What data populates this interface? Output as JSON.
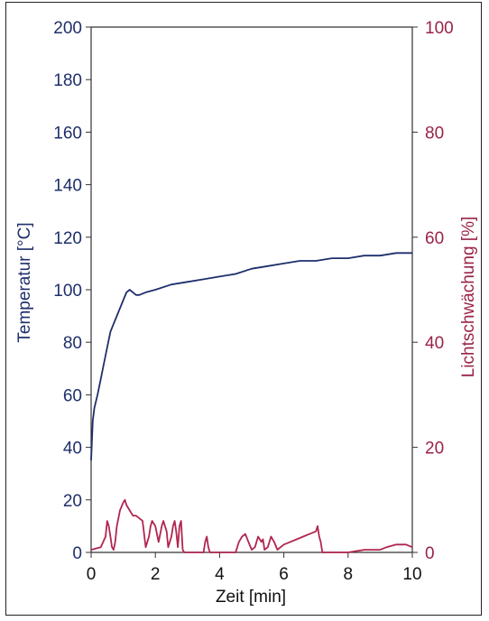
{
  "chart_data": {
    "type": "line",
    "xlabel": "Zeit [min]",
    "ylabel_left": "Temperatur [°C]",
    "ylabel_right": "Lichtschwächung [%]",
    "xlim": [
      0,
      10
    ],
    "ylim_left": [
      0,
      200
    ],
    "ylim_right": [
      0,
      100
    ],
    "x_ticks": [
      "0",
      "2",
      "4",
      "6",
      "8",
      "10"
    ],
    "y_left_ticks": [
      "0",
      "20",
      "40",
      "60",
      "80",
      "100",
      "120",
      "140",
      "160",
      "180",
      "200"
    ],
    "y_right_ticks": [
      "0",
      "20",
      "40",
      "60",
      "80",
      "100"
    ],
    "grid": false,
    "colors": {
      "temperature": "#1f2f6b",
      "light": "#b0264f",
      "axis": "#333333"
    },
    "series": [
      {
        "axis": "left",
        "x": [
          0,
          0.05,
          0.1,
          0.2,
          0.3,
          0.4,
          0.5,
          0.6,
          0.7,
          0.8,
          0.9,
          1.0,
          1.1,
          1.2,
          1.3,
          1.4,
          1.5,
          1.7,
          2.0,
          2.5,
          3.0,
          3.5,
          4.0,
          4.5,
          5.0,
          5.5,
          6.0,
          6.5,
          7.0,
          7.5,
          8.0,
          8.5,
          9.0,
          9.5,
          10.0
        ],
        "values": [
          35,
          50,
          55,
          60,
          66,
          72,
          78,
          84,
          87,
          90,
          93,
          96,
          99,
          100,
          99,
          98,
          98,
          99,
          100,
          102,
          103,
          104,
          105,
          106,
          108,
          109,
          110,
          111,
          111,
          112,
          112,
          113,
          113,
          114,
          114
        ]
      },
      {
        "axis": "right",
        "x": [
          0,
          0.3,
          0.45,
          0.5,
          0.55,
          0.6,
          0.65,
          0.7,
          0.75,
          0.8,
          0.9,
          1.0,
          1.05,
          1.1,
          1.2,
          1.3,
          1.4,
          1.5,
          1.6,
          1.7,
          1.8,
          1.85,
          1.9,
          2.0,
          2.1,
          2.2,
          2.25,
          2.3,
          2.35,
          2.4,
          2.5,
          2.55,
          2.6,
          2.65,
          2.7,
          2.75,
          2.8,
          2.85,
          2.9,
          3.5,
          3.55,
          3.6,
          3.65,
          3.7,
          4.5,
          4.6,
          4.7,
          4.8,
          4.9,
          5.0,
          5.1,
          5.2,
          5.3,
          5.35,
          5.4,
          5.5,
          5.6,
          5.7,
          5.8,
          5.9,
          6.0,
          6.2,
          6.4,
          6.6,
          6.8,
          7.0,
          7.05,
          7.1,
          7.15,
          7.2,
          7.5,
          8.0,
          8.5,
          9.0,
          9.2,
          9.5,
          9.8,
          10.0
        ],
        "values": [
          0.5,
          1,
          3,
          6,
          5,
          3,
          1,
          0.5,
          2,
          5,
          8,
          9.5,
          10,
          9,
          8,
          7,
          7,
          6.5,
          6,
          1,
          3,
          5,
          6,
          5,
          2,
          5,
          6,
          5,
          4,
          1,
          3,
          5,
          6,
          4,
          1,
          5,
          6,
          0.5,
          0,
          0,
          2,
          3,
          1,
          0,
          0,
          2,
          3,
          3.5,
          2,
          0.5,
          1,
          3,
          2,
          2.5,
          0.5,
          1,
          3,
          2,
          0.5,
          1,
          1.5,
          2,
          2.5,
          3,
          3.5,
          4,
          5,
          3,
          2,
          0,
          0,
          0,
          0.5,
          0.5,
          1,
          1.5,
          1.5,
          1
        ]
      }
    ]
  }
}
